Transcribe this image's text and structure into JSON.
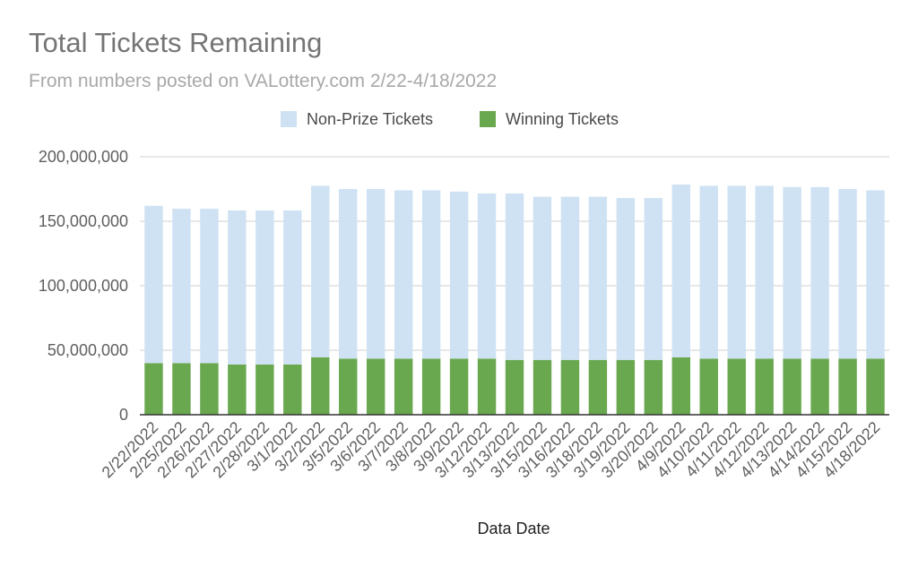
{
  "chart_data": {
    "type": "bar",
    "stacked": true,
    "title": "Total Tickets Remaining",
    "subtitle": "From numbers posted on VALottery.com 2/22-4/18/2022",
    "xlabel": "Data Date",
    "ylabel": "",
    "ylim": [
      0,
      200000000
    ],
    "yticks": [
      0,
      50000000,
      100000000,
      150000000,
      200000000
    ],
    "ytick_labels": [
      "0",
      "50,000,000",
      "100,000,000",
      "150,000,000",
      "200,000,000"
    ],
    "grid": true,
    "legend_position": "top",
    "categories": [
      "2/22/2022",
      "2/25/2022",
      "2/26/2022",
      "2/27/2022",
      "2/28/2022",
      "3/1/2022",
      "3/2/2022",
      "3/5/2022",
      "3/6/2022",
      "3/7/2022",
      "3/8/2022",
      "3/9/2022",
      "3/12/2022",
      "3/13/2022",
      "3/15/2022",
      "3/16/2022",
      "3/18/2022",
      "3/19/2022",
      "3/20/2022",
      "4/9/2022",
      "4/10/2022",
      "4/11/2022",
      "4/12/2022",
      "4/13/2022",
      "4/14/2022",
      "4/15/2022",
      "4/18/2022"
    ],
    "series": [
      {
        "name": "Winning Tickets",
        "color": "#6aa84f",
        "values": [
          40000000,
          40000000,
          40000000,
          39000000,
          39000000,
          39000000,
          44500000,
          43500000,
          43500000,
          43500000,
          43500000,
          43500000,
          43500000,
          42500000,
          42500000,
          42500000,
          42500000,
          42500000,
          42500000,
          44500000,
          43500000,
          43500000,
          43500000,
          43500000,
          43500000,
          43500000,
          43500000
        ]
      },
      {
        "name": "Non-Prize Tickets",
        "color": "#cfe2f3",
        "values": [
          122000000,
          119700000,
          119700000,
          119400000,
          119400000,
          119400000,
          133000000,
          131500000,
          131500000,
          130500000,
          130500000,
          129500000,
          128000000,
          129000000,
          126500000,
          126500000,
          126500000,
          125500000,
          125500000,
          134000000,
          134000000,
          134000000,
          134000000,
          133000000,
          133000000,
          131500000,
          130500000
        ]
      }
    ]
  }
}
